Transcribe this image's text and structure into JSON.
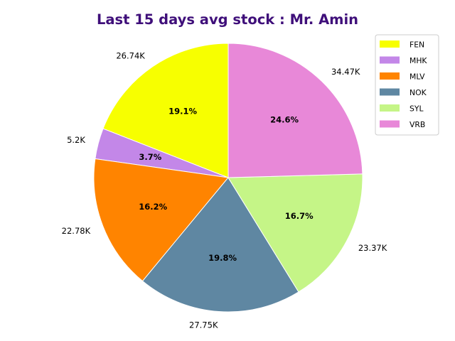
{
  "chart_data": {
    "type": "pie",
    "title": "Last 15 days avg stock : Mr. Amin",
    "title_color": "#3f0f7a",
    "start_angle_deg": 90,
    "direction": "counterclockwise",
    "legend_placement": "top-right",
    "slices": [
      {
        "label": "FEN",
        "value": 26.74,
        "value_label": "26.74K",
        "percent_label": "19.1%",
        "color": "#f7ff00"
      },
      {
        "label": "MHK",
        "value": 5.2,
        "value_label": "5.2K",
        "percent_label": "3.7%",
        "color": "#c387e8"
      },
      {
        "label": "MLV",
        "value": 22.78,
        "value_label": "22.78K",
        "percent_label": "16.2%",
        "color": "#ff8400"
      },
      {
        "label": "NOK",
        "value": 27.75,
        "value_label": "27.75K",
        "percent_label": "19.8%",
        "color": "#5f87a2"
      },
      {
        "label": "SYL",
        "value": 23.37,
        "value_label": "23.37K",
        "percent_label": "16.7%",
        "color": "#c5f587"
      },
      {
        "label": "VRB",
        "value": 34.47,
        "value_label": "34.47K",
        "percent_label": "24.6%",
        "color": "#e888d8"
      }
    ]
  }
}
